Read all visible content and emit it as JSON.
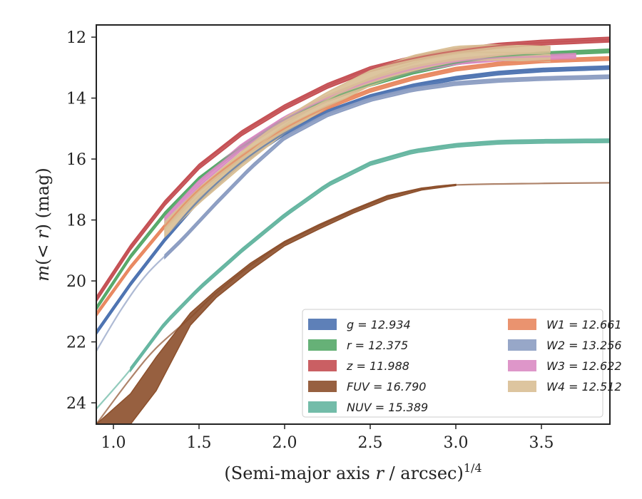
{
  "chart_data": {
    "type": "line",
    "xlabel": "(Semi-major axis r / arcsec)^{1/4}",
    "xlabel_parts": {
      "prefix": "(Semi-major axis ",
      "var": "r",
      "mid": " / arcsec)",
      "sup": "1/4"
    },
    "ylabel": "m(<r) (mag)",
    "ylabel_parts": {
      "m": "m",
      "lt": "(< ",
      "r": "r",
      "rest": ") (mag)"
    },
    "xlim": [
      0.9,
      3.9
    ],
    "ylim": [
      24.7,
      11.6
    ],
    "y_inverted": true,
    "xticks": [
      1.0,
      1.5,
      2.0,
      2.5,
      3.0,
      3.5
    ],
    "xtick_labels": [
      "1.0",
      "1.5",
      "2.0",
      "2.5",
      "3.0",
      "3.5"
    ],
    "yticks": [
      12,
      14,
      16,
      18,
      20,
      22,
      24
    ],
    "ytick_labels": [
      "12",
      "14",
      "16",
      "18",
      "20",
      "22",
      "24"
    ],
    "grid": false,
    "legend_position": "lower-right",
    "series": [
      {
        "name": "g",
        "label": "12.934",
        "color": "#4c72b0",
        "x": [
          0.9,
          1.1,
          1.3,
          1.5,
          1.75,
          2.0,
          2.25,
          2.5,
          2.75,
          3.0,
          3.25,
          3.5,
          3.9
        ],
        "y": [
          21.7,
          20.1,
          18.65,
          17.35,
          16.1,
          15.15,
          14.45,
          13.95,
          13.6,
          13.35,
          13.18,
          13.08,
          13.0
        ],
        "band": 0.06,
        "bandx": [
          0.9,
          3.9
        ]
      },
      {
        "name": "r",
        "label": "12.375",
        "color": "#55a868",
        "x": [
          0.9,
          1.1,
          1.3,
          1.5,
          1.75,
          2.0,
          2.25,
          2.5,
          2.75,
          3.0,
          3.25,
          3.5,
          3.9
        ],
        "y": [
          20.9,
          19.2,
          17.8,
          16.65,
          15.6,
          14.7,
          14.05,
          13.55,
          13.15,
          12.85,
          12.65,
          12.55,
          12.45
        ],
        "band": 0.06,
        "bandx": [
          0.9,
          3.9
        ]
      },
      {
        "name": "z",
        "label": "11.988",
        "color": "#c44e52",
        "x": [
          0.9,
          1.1,
          1.3,
          1.5,
          1.75,
          2.0,
          2.25,
          2.5,
          2.75,
          3.0,
          3.25,
          3.5,
          3.9
        ],
        "y": [
          20.6,
          18.9,
          17.45,
          16.25,
          15.15,
          14.3,
          13.6,
          13.05,
          12.7,
          12.45,
          12.28,
          12.18,
          12.08
        ],
        "band": 0.08,
        "bandx": [
          0.9,
          3.9
        ]
      },
      {
        "name": "FUV",
        "label": "16.790",
        "color": "#8c4f2b",
        "x": [
          0.9,
          1.1,
          1.25,
          1.45,
          1.6,
          1.8,
          2.0,
          2.2,
          2.4,
          2.6,
          2.8,
          3.0,
          3.5,
          3.9
        ],
        "y": [
          24.7,
          23.2,
          22.2,
          21.2,
          20.4,
          19.5,
          18.75,
          18.2,
          17.7,
          17.25,
          16.98,
          16.85,
          16.8,
          16.78
        ],
        "band_upper": [
          24.7,
          23.7,
          22.5,
          21.05,
          20.3,
          19.42,
          18.7,
          18.15,
          17.65,
          17.2,
          16.95,
          16.83
        ],
        "band_lower": [
          24.7,
          24.7,
          23.6,
          21.45,
          20.55,
          19.65,
          18.85,
          18.3,
          17.78,
          17.33,
          17.02,
          16.87
        ],
        "bandx": [
          0.9,
          3.0
        ]
      },
      {
        "name": "NUV",
        "label": "15.389",
        "color": "#64b5a0",
        "x": [
          0.9,
          1.1,
          1.3,
          1.5,
          1.75,
          2.0,
          2.25,
          2.5,
          2.75,
          3.0,
          3.25,
          3.5,
          3.9
        ],
        "y": [
          24.2,
          22.9,
          21.4,
          20.25,
          19.0,
          17.85,
          16.85,
          16.15,
          15.75,
          15.55,
          15.45,
          15.42,
          15.4
        ],
        "band": 0.06,
        "bandx": [
          1.1,
          3.9
        ]
      },
      {
        "name": "W1",
        "label": "12.661",
        "color": "#e8875f",
        "x": [
          0.9,
          1.1,
          1.3,
          1.5,
          1.75,
          2.0,
          2.25,
          2.5,
          2.75,
          3.0,
          3.25,
          3.5,
          3.9
        ],
        "y": [
          21.1,
          19.55,
          18.2,
          17.0,
          15.9,
          15.0,
          14.3,
          13.75,
          13.35,
          13.05,
          12.88,
          12.78,
          12.7
        ],
        "band": 0.06,
        "bandx": [
          0.9,
          3.9
        ]
      },
      {
        "name": "W2",
        "label": "13.256",
        "color": "#8c9dc2",
        "x": [
          0.9,
          1.05,
          1.2,
          1.4,
          1.6,
          1.8,
          2.0,
          2.25,
          2.5,
          2.75,
          3.0,
          3.25,
          3.5,
          3.9
        ],
        "y": [
          22.3,
          20.9,
          19.75,
          18.65,
          17.45,
          16.3,
          15.3,
          14.55,
          14.05,
          13.72,
          13.52,
          13.42,
          13.36,
          13.3
        ],
        "band": 0.06,
        "bandx": [
          1.3,
          3.9
        ]
      },
      {
        "name": "W3",
        "label": "12.622",
        "color": "#da8bc3",
        "x": [
          1.3,
          1.5,
          1.75,
          2.0,
          2.25,
          2.5,
          2.75,
          3.0,
          3.25,
          3.5,
          3.7
        ],
        "y": [
          18.0,
          16.8,
          15.6,
          14.7,
          14.0,
          13.45,
          13.05,
          12.8,
          12.68,
          12.64,
          12.63
        ],
        "band": 0.1,
        "bandx": [
          1.3,
          3.7
        ]
      },
      {
        "name": "W4",
        "label": "12.512",
        "color": "#d9bf95",
        "x": [
          1.3,
          1.5,
          1.75,
          2.0,
          2.25,
          2.5,
          2.75,
          3.0,
          3.2,
          3.55
        ],
        "y": [
          18.3,
          17.2,
          16.0,
          14.9,
          14.05,
          13.35,
          12.85,
          12.55,
          12.5,
          12.55
        ],
        "band": 0.25,
        "bandx": [
          1.3,
          3.55
        ]
      }
    ]
  }
}
